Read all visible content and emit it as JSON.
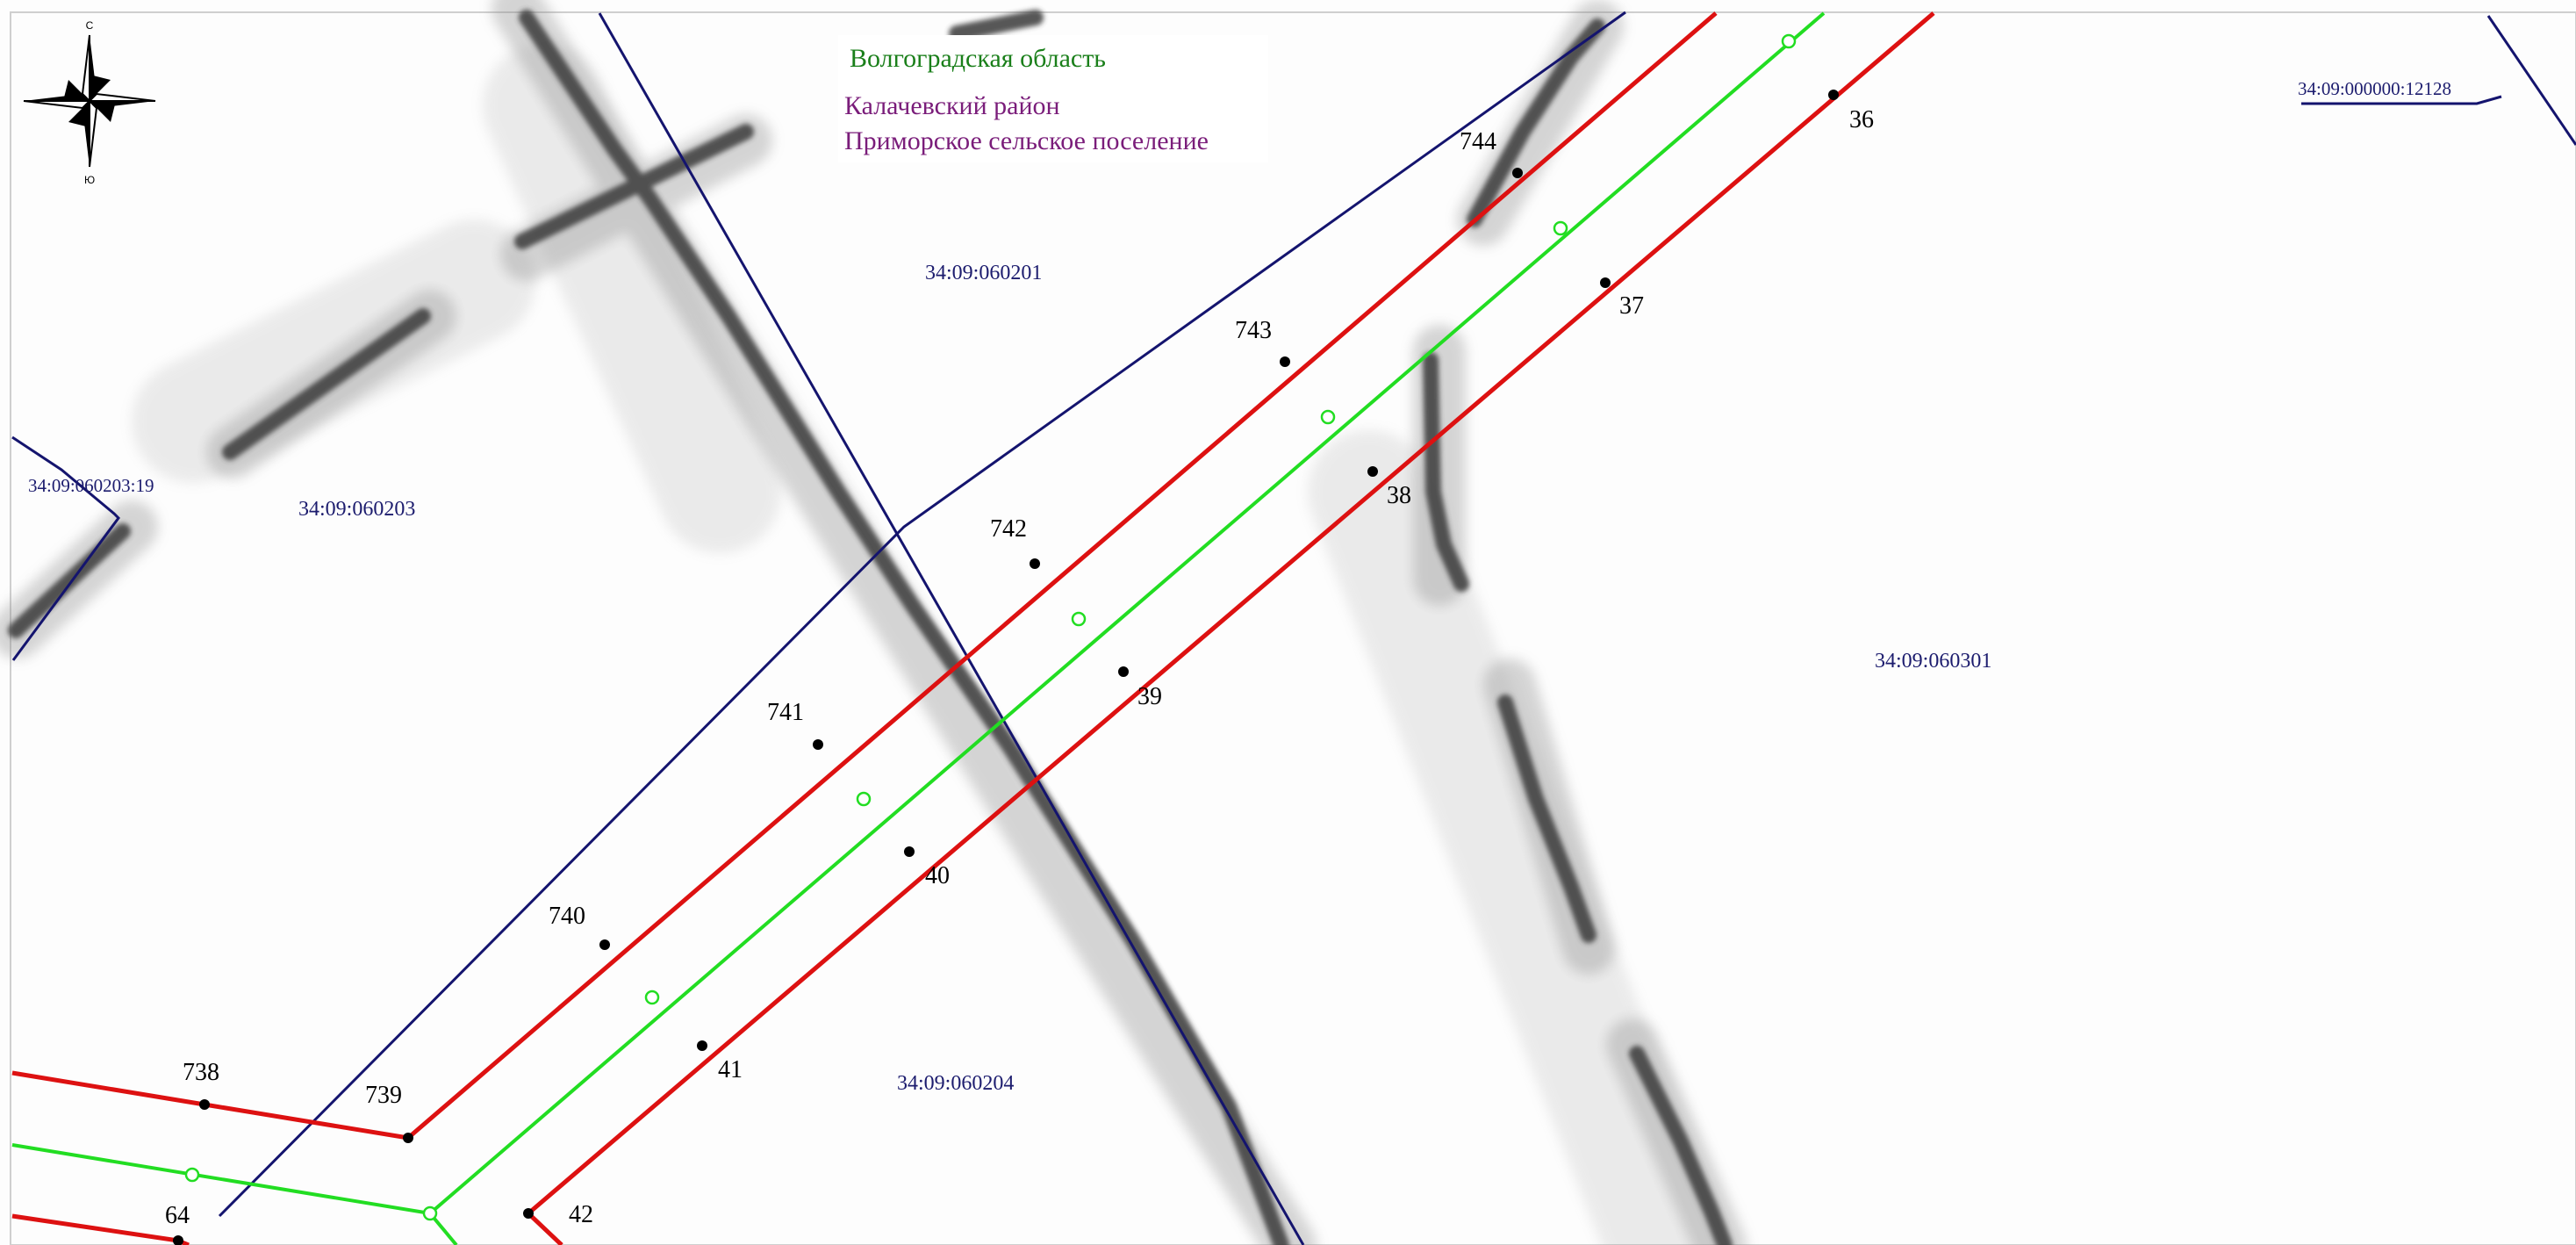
{
  "header": {
    "region": "Волгоградская область",
    "district": "Калачевский район",
    "settlement": "Приморское сельское поселение"
  },
  "compass": {
    "north_letter": "С",
    "south_letter": "Ю",
    "icon": "compass-rose-icon"
  },
  "colors": {
    "boundary_red": "#dd1111",
    "axis_green": "#22dd22",
    "cadastral_blue": "#14146e",
    "region_text": "#1a7f1a",
    "admin_text": "#7a1d7a",
    "parcel_text": "#1c1c6e",
    "point_black": "#000000"
  },
  "parcels": [
    {
      "id": "p-060201",
      "label": "34:09:060201"
    },
    {
      "id": "p-060203",
      "label": "34:09:060203"
    },
    {
      "id": "p-060203-19",
      "label": "34:09:060203:19"
    },
    {
      "id": "p-060301",
      "label": "34:09:060301"
    },
    {
      "id": "p-060204",
      "label": "34:09:060204"
    },
    {
      "id": "p-000000-12128",
      "label": "34:09:000000:12128"
    }
  ],
  "boundary_points": [
    {
      "id": "pt-36",
      "label": "36"
    },
    {
      "id": "pt-37",
      "label": "37"
    },
    {
      "id": "pt-38",
      "label": "38"
    },
    {
      "id": "pt-39",
      "label": "39"
    },
    {
      "id": "pt-40",
      "label": "40"
    },
    {
      "id": "pt-41",
      "label": "41"
    },
    {
      "id": "pt-42",
      "label": "42"
    },
    {
      "id": "pt-64",
      "label": "64"
    },
    {
      "id": "pt-738",
      "label": "738"
    },
    {
      "id": "pt-739",
      "label": "739"
    },
    {
      "id": "pt-740",
      "label": "740"
    },
    {
      "id": "pt-741",
      "label": "741"
    },
    {
      "id": "pt-742",
      "label": "742"
    },
    {
      "id": "pt-743",
      "label": "743"
    },
    {
      "id": "pt-744",
      "label": "744"
    }
  ]
}
